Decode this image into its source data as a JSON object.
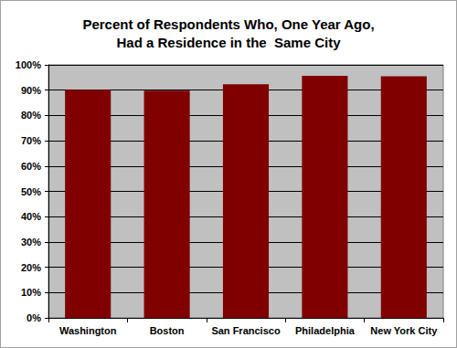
{
  "chart_data": {
    "type": "bar",
    "title": "Percent of Respondents Who, One Year Ago,\nHad a Residence in the  Same City",
    "categories": [
      "Washington",
      "Boston",
      "San Francisco",
      "Philadelphia",
      "New York City"
    ],
    "values": [
      90.2,
      89.8,
      92.3,
      95.7,
      95.5
    ],
    "color": "#800000",
    "ylim": [
      0,
      100
    ],
    "yticks": [
      {
        "value": 0,
        "label": "0%"
      },
      {
        "value": 10,
        "label": "10%"
      },
      {
        "value": 20,
        "label": "20%"
      },
      {
        "value": 30,
        "label": "30%"
      },
      {
        "value": 40,
        "label": "40%"
      },
      {
        "value": 50,
        "label": "50%"
      },
      {
        "value": 60,
        "label": "60%"
      },
      {
        "value": 70,
        "label": "70%"
      },
      {
        "value": 80,
        "label": "80%"
      },
      {
        "value": 90,
        "label": "90%"
      },
      {
        "value": 100,
        "label": "100%"
      }
    ],
    "grid": true
  }
}
